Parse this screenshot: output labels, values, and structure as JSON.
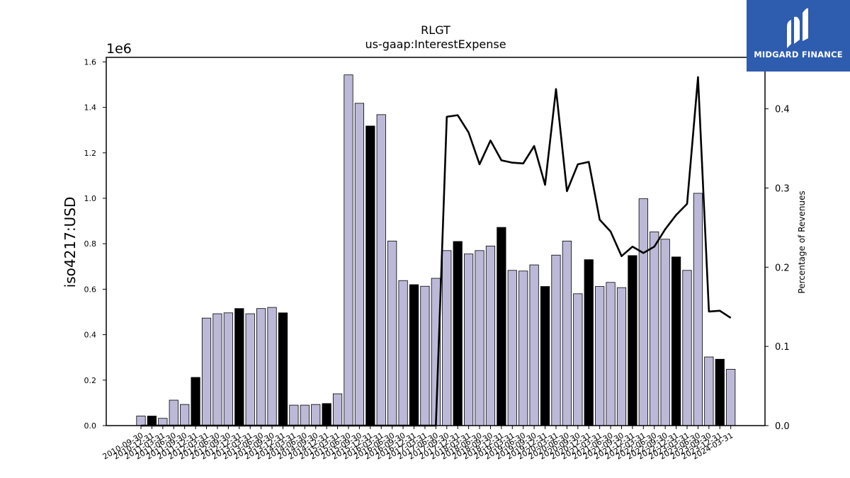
{
  "chart_data": {
    "type": "bar",
    "title": "RLGT",
    "subtitle": "us-gaap:InterestExpense",
    "ylabel": "iso4217:USD",
    "y_multiplier": "1e6",
    "ylabel_right": "Percentage of Revenues",
    "ylim": [
      0,
      1620000
    ],
    "ylim_right": [
      0,
      0.465
    ],
    "y_ticks": [
      "0.0",
      "0.2",
      "0.4",
      "0.6",
      "0.8",
      "1.0",
      "1.2",
      "1.4",
      "1.6"
    ],
    "y_ticks_right": [
      "0.0",
      "0.1",
      "0.2",
      "0.3",
      "0.4"
    ],
    "grid": false,
    "legend": "none",
    "colors": {
      "bar": "#bcb9d8",
      "bar_highlight": "#000000",
      "edge": "#000000",
      "line": "#000000"
    },
    "categories": [
      "2010-09-30",
      "2010-12-31",
      "2011-03-31",
      "2011-06-30",
      "2011-09-30",
      "2011-12-31",
      "2012-03-31",
      "2012-06-30",
      "2012-09-30",
      "2012-12-31",
      "2013-03-31",
      "2013-06-30",
      "2013-09-30",
      "2013-12-31",
      "2014-03-31",
      "2014-06-30",
      "2014-09-30",
      "2014-12-31",
      "2015-03-31",
      "2015-06-30",
      "2015-09-30",
      "2015-12-31",
      "2016-03-31",
      "2016-06-30",
      "2016-09-30",
      "2016-12-31",
      "2017-03-31",
      "2017-06-30",
      "2017-09-30",
      "2017-12-31",
      "2018-03-31",
      "2018-06-30",
      "2018-09-30",
      "2018-12-31",
      "2019-03-31",
      "2019-06-30",
      "2019-09-30",
      "2019-12-31",
      "2020-03-31",
      "2020-06-30",
      "2020-09-30",
      "2020-12-31",
      "2021-03-31",
      "2021-06-30",
      "2021-09-30",
      "2021-12-31",
      "2022-03-31",
      "2022-06-30",
      "2022-09-30",
      "2022-12-31",
      "2023-03-31",
      "2023-06-30",
      "2023-09-30",
      "2023-12-31",
      "2024-03-31"
    ],
    "values": [
      42000,
      42000,
      32000,
      112000,
      93000,
      212000,
      473000,
      492000,
      496000,
      515000,
      492000,
      515000,
      520000,
      496000,
      90000,
      90000,
      93000,
      97000,
      140000,
      1543000,
      1418000,
      1318000,
      1368000,
      812000,
      638000,
      620000,
      613000,
      648000,
      770000,
      810000,
      755000,
      770000,
      790000,
      872000,
      683000,
      680000,
      707000,
      612000,
      750000,
      812000,
      580000,
      730000,
      612000,
      630000,
      607000,
      748000,
      998000,
      852000,
      820000,
      742000,
      683000,
      1022000,
      302000,
      292000,
      248000
    ],
    "highlight": [
      false,
      true,
      false,
      false,
      false,
      true,
      false,
      false,
      false,
      true,
      false,
      false,
      false,
      true,
      false,
      false,
      false,
      true,
      false,
      false,
      false,
      true,
      false,
      false,
      false,
      true,
      false,
      false,
      false,
      true,
      false,
      false,
      false,
      true,
      false,
      false,
      false,
      true,
      false,
      false,
      false,
      true,
      false,
      false,
      false,
      true,
      false,
      false,
      false,
      true,
      false,
      false,
      false,
      true,
      false
    ],
    "series_right": [
      0,
      0,
      0,
      0,
      0,
      0,
      0,
      0,
      0,
      0,
      0,
      0,
      0,
      0,
      0,
      0,
      0,
      0,
      0,
      0,
      0,
      0,
      0,
      0,
      0,
      0,
      0,
      0,
      0.39,
      0.392,
      0.37,
      0.33,
      0.36,
      0.335,
      0.332,
      0.331,
      0.353,
      0.304,
      0.425,
      0.296,
      0.33,
      0.333,
      0.26,
      0.245,
      0.214,
      0.226,
      0.218,
      0.226,
      0.248,
      0.266,
      0.28,
      0.44,
      0.144,
      0.145,
      0.136
    ]
  },
  "logo": {
    "text": "MIDGARD FINANCE"
  }
}
